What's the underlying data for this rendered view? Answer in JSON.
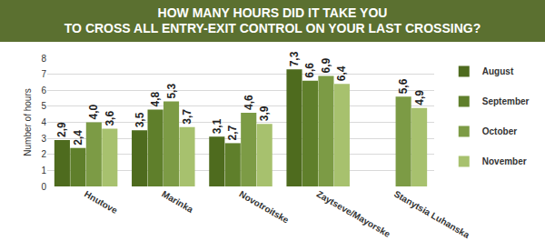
{
  "chart_data": {
    "type": "bar",
    "title": "HOW MANY HOURS DID IT TAKE YOU\nTO CROSS ALL ENTRY-EXIT CONTROL ON YOUR LAST CROSSING?",
    "y_label": "Number of hours",
    "categories": [
      "Hnutove",
      "Marinka",
      "Novotroitske",
      "Zaytseve/Mayorske",
      "Stanytsia Luhanska"
    ],
    "series": [
      {
        "name": "August",
        "color": "#4e6b1e",
        "values": [
          2.9,
          3.5,
          3.1,
          7.3,
          null
        ],
        "value_labels": [
          "2,9",
          "3,5",
          "3,1",
          "7,3",
          null
        ]
      },
      {
        "name": "September",
        "color": "#5f7f2b",
        "values": [
          2.4,
          4.8,
          2.7,
          6.6,
          null
        ],
        "value_labels": [
          "2,4",
          "4,8",
          "2,7",
          "6,6",
          null
        ]
      },
      {
        "name": "October",
        "color": "#7c9b45",
        "values": [
          4.0,
          5.3,
          4.6,
          6.9,
          5.6
        ],
        "value_labels": [
          "4,0",
          "5,3",
          "4,6",
          "6,9",
          "5,6"
        ]
      },
      {
        "name": "November",
        "color": "#a7c16e",
        "values": [
          3.6,
          3.7,
          3.9,
          6.4,
          4.9
        ],
        "value_labels": [
          "3,6",
          "3,7",
          "3,9",
          "6,4",
          "4,9"
        ]
      }
    ],
    "ylim": [
      0,
      8
    ],
    "yticks": [
      0,
      1,
      2,
      3,
      4,
      5,
      6,
      7,
      8
    ],
    "grid": true,
    "legend": "right",
    "data_labels": true
  }
}
